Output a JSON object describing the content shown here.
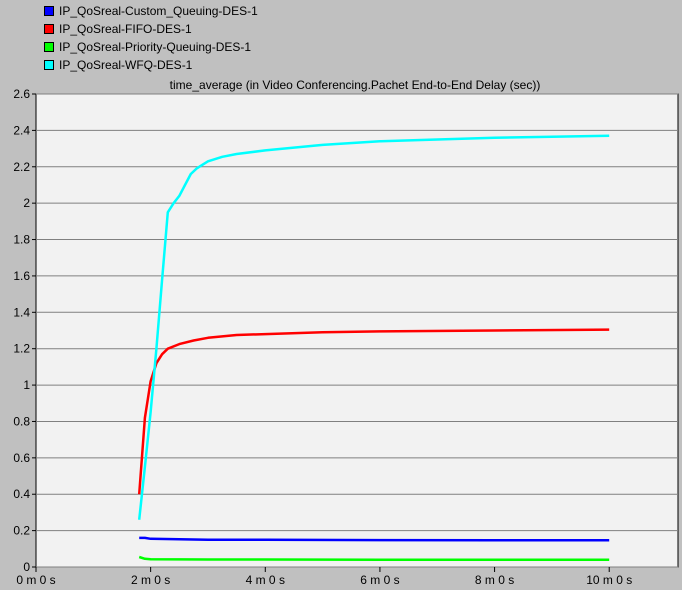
{
  "legend": [
    {
      "label": "IP_QoSreal-Custom_Queuing-DES-1",
      "color": "#0000ff"
    },
    {
      "label": "IP_QoSreal-FIFO-DES-1",
      "color": "#ff0000"
    },
    {
      "label": "IP_QoSreal-Priority-Queuing-DES-1",
      "color": "#00ff00"
    },
    {
      "label": "IP_QoSreal-WFQ-DES-1",
      "color": "#00ffff"
    }
  ],
  "chart_data": {
    "type": "line",
    "title": "time_average (in Video Conferencing.Pachet End-to-End Delay (sec))",
    "xlabel": "",
    "ylabel": "",
    "x_unit": "minutes",
    "xlim": [
      0,
      11.2
    ],
    "ylim": [
      0,
      2.6
    ],
    "grid": true,
    "y_ticks": [
      0,
      0.2,
      0.4,
      0.6,
      0.8,
      1,
      1.2,
      1.4,
      1.6,
      1.8,
      2,
      2.2,
      2.4,
      2.6
    ],
    "y_tick_labels": [
      "0",
      "0.2",
      "0.4",
      "0.6",
      "0.8",
      "1",
      "1.2",
      "1.4",
      "1.6",
      "1.8",
      "2",
      "2.2",
      "2.4",
      "2.6"
    ],
    "x_ticks": [
      0,
      2,
      4,
      6,
      8,
      10
    ],
    "x_tick_labels": [
      "0 m 0 s",
      "2 m 0 s",
      "4 m 0 s",
      "6 m 0 s",
      "8 m 0 s",
      "10 m 0 s"
    ],
    "series": [
      {
        "name": "IP_QoSreal-Custom_Queuing-DES-1",
        "color": "#0000ff",
        "x": [
          1.8,
          1.9,
          2.0,
          2.5,
          3.0,
          4.0,
          6.0,
          8.0,
          10.0
        ],
        "y": [
          0.16,
          0.16,
          0.155,
          0.152,
          0.15,
          0.15,
          0.148,
          0.147,
          0.147
        ]
      },
      {
        "name": "IP_QoSreal-FIFO-DES-1",
        "color": "#ff0000",
        "x": [
          1.8,
          1.9,
          2.0,
          2.1,
          2.2,
          2.3,
          2.5,
          2.75,
          3.0,
          3.5,
          4.0,
          5.0,
          6.0,
          8.0,
          10.0
        ],
        "y": [
          0.4,
          0.82,
          1.02,
          1.12,
          1.17,
          1.2,
          1.225,
          1.245,
          1.26,
          1.275,
          1.28,
          1.29,
          1.295,
          1.3,
          1.305
        ]
      },
      {
        "name": "IP_QoSreal-Priority-Queuing-DES-1",
        "color": "#00ff00",
        "x": [
          1.8,
          1.9,
          2.0,
          2.5,
          3.0,
          4.0,
          6.0,
          8.0,
          10.0
        ],
        "y": [
          0.055,
          0.045,
          0.043,
          0.042,
          0.041,
          0.041,
          0.04,
          0.04,
          0.04
        ]
      },
      {
        "name": "IP_QoSreal-WFQ-DES-1",
        "color": "#00ffff",
        "x": [
          1.8,
          1.9,
          2.0,
          2.1,
          2.2,
          2.3,
          2.4,
          2.5,
          2.6,
          2.7,
          2.8,
          2.9,
          3.0,
          3.25,
          3.5,
          4.0,
          5.0,
          6.0,
          7.0,
          8.0,
          9.0,
          10.0
        ],
        "y": [
          0.26,
          0.55,
          0.85,
          1.2,
          1.58,
          1.95,
          2.0,
          2.04,
          2.1,
          2.16,
          2.19,
          2.21,
          2.23,
          2.255,
          2.27,
          2.29,
          2.32,
          2.34,
          2.35,
          2.36,
          2.365,
          2.37
        ]
      }
    ]
  }
}
